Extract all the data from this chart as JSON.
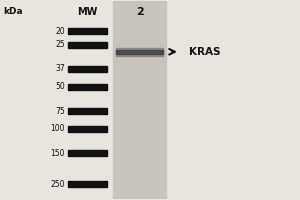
{
  "background_color": "#e8e4de",
  "lane_bg_color": "#c8c4bc",
  "title_kda": "kDa",
  "title_mw": "MW",
  "title_lane2": "2",
  "mw_labels": [
    "250",
    "150",
    "100",
    "75",
    "50",
    "37",
    "25",
    "20"
  ],
  "mw_positions": [
    250,
    150,
    100,
    75,
    50,
    37,
    25,
    20
  ],
  "band_color": "#111111",
  "sample_band_color": "#777777",
  "kras_label": "KRAS",
  "kras_mw": 28,
  "arrow_color": "#111111",
  "label_color": "#111111",
  "fig_width": 3.0,
  "fig_height": 2.0,
  "dpi": 100,
  "log_min": 1.18,
  "log_max": 2.45
}
